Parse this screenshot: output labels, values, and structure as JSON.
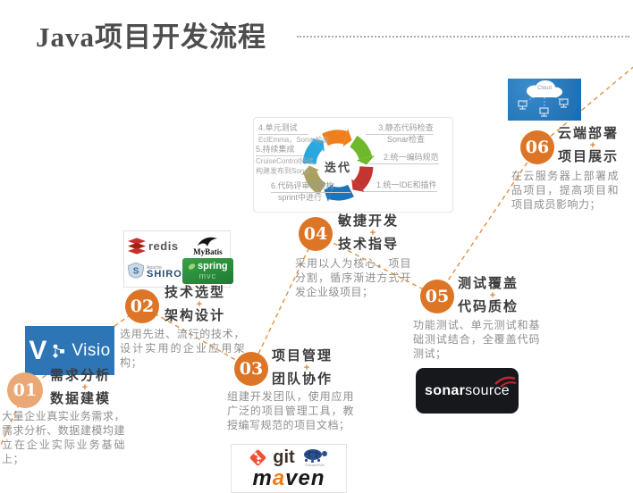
{
  "header": {
    "title": "Java项目开发流程"
  },
  "cycle": {
    "center": "迭代",
    "labels": {
      "l1": "1.统一IDE和插件",
      "l2": "2.统一编码规范",
      "l3a": "3.静态代码检查",
      "l3b": "Sonar检查",
      "l4a": "4.单元测试",
      "l4b": "EclEmma，Sonar检查",
      "l5a": "5.持续集成",
      "l5b": "CruiseControl持续",
      "l5c": "构建发布到Sonar",
      "l6a": "6.代码评审和重构",
      "l6b": "sprint中进行"
    },
    "segment_colors": [
      "#ef7f1a",
      "#6eb92b",
      "#c23531",
      "#1c75bc",
      "#a9a15d",
      "#29a8df"
    ]
  },
  "steps": [
    {
      "number": "01",
      "title1": "需求分析",
      "plus": "+",
      "title2": "数据建模",
      "desc": "大量企业真实业务需求，需求分析、数据建模均建立在企业实际业务基础上；"
    },
    {
      "number": "02",
      "title1": "技术选型",
      "plus": "+",
      "title2": "架构设计",
      "desc": "选用先进、流行的技术，设计实用的企业应用架构；"
    },
    {
      "number": "03",
      "title1": "项目管理",
      "plus": "+",
      "title2": "团队协作",
      "desc": "组建开发团队，使用应用广泛的项目管理工具，教授编写规范的项目文档；"
    },
    {
      "number": "04",
      "title1": "敏捷开发",
      "plus": "+",
      "title2": "技术指导",
      "desc": "采用以人为核心，项目分割，循序渐进方式开发企业级项目；"
    },
    {
      "number": "05",
      "title1": "测试覆盖",
      "plus": "+",
      "title2": "代码质检",
      "desc": "功能测试、单元测试和基础测试结合，全覆盖代码测试；"
    },
    {
      "number": "06",
      "title1": "云端部署",
      "plus": "+",
      "title2": "项目展示",
      "desc": "在云服务器上部署成品项目，提高项目和项目成员影响力；"
    }
  ],
  "logos": {
    "visio": "Visio",
    "redis": "redis",
    "mybatis": "MyBatis",
    "shiro_small": "Apache",
    "shiro": "SHIRO",
    "spring": "spring",
    "mvc": "mvc",
    "git": "git",
    "turtle": "TortoiseSVN",
    "maven_m": "m",
    "maven_a": "a",
    "maven_ven": "ven",
    "sonar_bold": "sonar",
    "sonar_light": "source",
    "cloud": "Cloud"
  },
  "colors": {
    "step_circle": "#dd7527",
    "step_circle_light": "#e9a876",
    "dashed_line": "#e2913f",
    "plus": "#e0832f"
  }
}
